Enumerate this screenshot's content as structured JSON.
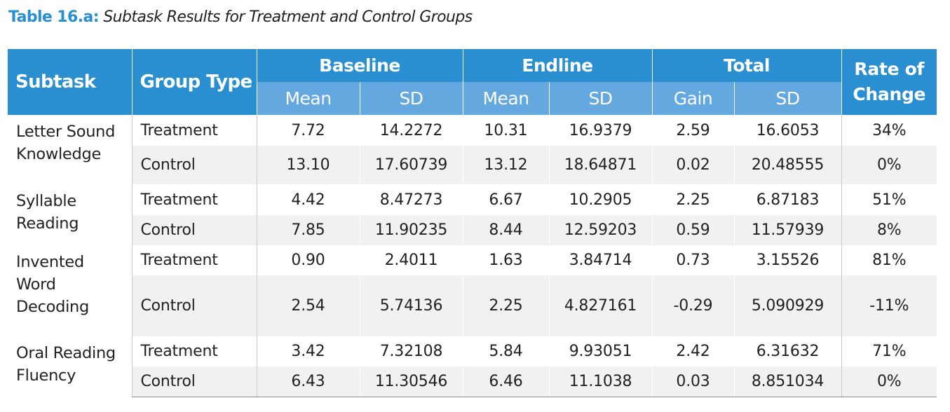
{
  "caption": {
    "label": "Table 16.a:",
    "title": "Subtask Results for Treatment and Control Groups"
  },
  "table": {
    "headers": {
      "subtask": "Subtask",
      "group_type": "Group Type",
      "baseline": "Baseline",
      "endline": "Endline",
      "total": "Total",
      "rate_line1": "Rate of",
      "rate_line2": "Change",
      "sub": [
        "Mean",
        "SD",
        "Mean",
        "SD",
        "Gain",
        "SD"
      ]
    },
    "subtasks": [
      {
        "name": [
          "Letter Sound",
          "Knowledge"
        ],
        "rows": [
          {
            "group": "Treatment",
            "cells": [
              "7.72",
              "14.2272",
              "10.31",
              "16.9379",
              "2.59",
              "16.6053",
              "34%"
            ]
          },
          {
            "group": "Control",
            "cells": [
              "13.10",
              "17.60739",
              "13.12",
              "18.64871",
              "0.02",
              "20.48555",
              "0%"
            ]
          }
        ]
      },
      {
        "name": [
          "Syllable",
          "Reading"
        ],
        "rows": [
          {
            "group": "Treatment",
            "cells": [
              "4.42",
              "8.47273",
              "6.67",
              "10.2905",
              "2.25",
              "6.87183",
              "51%"
            ]
          },
          {
            "group": "Control",
            "cells": [
              "7.85",
              "11.90235",
              "8.44",
              "12.59203",
              "0.59",
              "11.57939",
              "8%"
            ]
          }
        ]
      },
      {
        "name": [
          "Invented",
          "Word",
          "Decoding"
        ],
        "rows": [
          {
            "group": "Treatment",
            "cells": [
              "0.90",
              "2.4011",
              "1.63",
              "3.84714",
              "0.73",
              "3.15526",
              "81%"
            ]
          },
          {
            "group": "Control",
            "cells": [
              "2.54",
              "5.74136",
              "2.25",
              "4.827161",
              "-0.29",
              "5.090929",
              "-11%"
            ]
          }
        ]
      },
      {
        "name": [
          "Oral Reading",
          "Fluency"
        ],
        "rows": [
          {
            "group": "Treatment",
            "cells": [
              "3.42",
              "7.32108",
              "5.84",
              "9.93051",
              "2.42",
              "6.31632",
              "71%"
            ]
          },
          {
            "group": "Control",
            "cells": [
              "6.43",
              "11.30546",
              "6.46",
              "11.1038",
              "0.03",
              "8.851034",
              "0%"
            ]
          }
        ]
      }
    ]
  }
}
